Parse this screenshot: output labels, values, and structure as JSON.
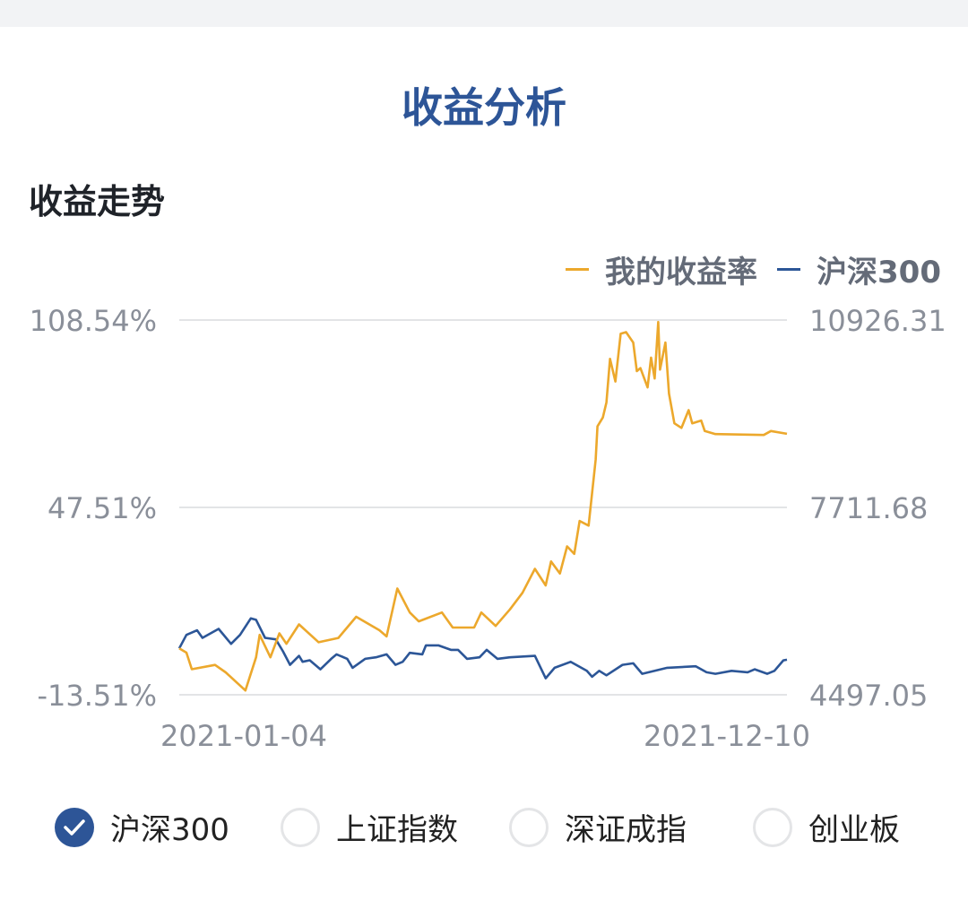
{
  "page_title": "收益分析",
  "section_title": "收益走势",
  "legend": [
    {
      "label": "我的收益率",
      "color": "#eca82c"
    },
    {
      "label": "沪深300",
      "color": "#2c5697"
    }
  ],
  "options": [
    {
      "label": "沪深300",
      "checked": true,
      "icon": "check-icon"
    },
    {
      "label": "上证指数",
      "checked": false
    },
    {
      "label": "深证成指",
      "checked": false
    },
    {
      "label": "创业板",
      "checked": false
    }
  ],
  "chart_data": {
    "type": "line",
    "x_ticks": [
      "2021-01-04",
      "2021-12-10"
    ],
    "x_range": [
      "2021-01-04",
      "2021-12-10"
    ],
    "left_axis": {
      "ticks": [
        "108.54%",
        "47.51%",
        "-13.51%"
      ],
      "range": [
        -13.51,
        108.54
      ]
    },
    "right_axis": {
      "ticks": [
        "10926.31",
        "7711.68",
        "4497.05"
      ],
      "range": [
        4497.05,
        10926.31
      ]
    },
    "grid": true,
    "legend_position": "top-right",
    "series": [
      {
        "name": "我的收益率",
        "axis": "left",
        "color": "#eca82c",
        "points": [
          [
            "2021-01-04",
            1.6
          ],
          [
            "2021-01-08",
            0.2
          ],
          [
            "2021-01-11",
            -5.2
          ],
          [
            "2021-01-24",
            -3.8
          ],
          [
            "2021-01-30",
            -6.2
          ],
          [
            "2021-02-10",
            -12.1
          ],
          [
            "2021-02-16",
            -1.3
          ],
          [
            "2021-02-18",
            6.0
          ],
          [
            "2021-02-24",
            -1.3
          ],
          [
            "2021-03-01",
            6.5
          ],
          [
            "2021-03-05",
            3.1
          ],
          [
            "2021-03-12",
            9.4
          ],
          [
            "2021-03-23",
            3.6
          ],
          [
            "2021-04-03",
            5.0
          ],
          [
            "2021-04-13",
            11.9
          ],
          [
            "2021-04-26",
            7.5
          ],
          [
            "2021-04-30",
            5.5
          ],
          [
            "2021-05-06",
            21.1
          ],
          [
            "2021-05-13",
            13.3
          ],
          [
            "2021-05-18",
            10.4
          ],
          [
            "2021-05-31",
            13.3
          ],
          [
            "2021-06-06",
            8.4
          ],
          [
            "2021-06-18",
            8.4
          ],
          [
            "2021-06-22",
            13.3
          ],
          [
            "2021-06-30",
            8.9
          ],
          [
            "2021-07-08",
            14.3
          ],
          [
            "2021-07-15",
            19.7
          ],
          [
            "2021-07-22",
            27.5
          ],
          [
            "2021-07-28",
            22.1
          ],
          [
            "2021-07-31",
            29.9
          ],
          [
            "2021-08-05",
            26.0
          ],
          [
            "2021-08-09",
            34.8
          ],
          [
            "2021-08-13",
            32.4
          ],
          [
            "2021-08-16",
            43.1
          ],
          [
            "2021-08-21",
            41.6
          ],
          [
            "2021-08-25",
            63.1
          ],
          [
            "2021-08-26",
            73.9
          ],
          [
            "2021-08-29",
            76.8
          ],
          [
            "2021-08-31",
            81.7
          ],
          [
            "2021-09-02",
            95.9
          ],
          [
            "2021-09-05",
            88.5
          ],
          [
            "2021-09-08",
            104.1
          ],
          [
            "2021-09-11",
            104.6
          ],
          [
            "2021-09-15",
            101.2
          ],
          [
            "2021-09-17",
            91.9
          ],
          [
            "2021-09-19",
            92.9
          ],
          [
            "2021-09-23",
            86.6
          ],
          [
            "2021-09-25",
            96.3
          ],
          [
            "2021-09-27",
            89.5
          ],
          [
            "2021-09-29",
            107.9
          ],
          [
            "2021-09-30",
            92.4
          ],
          [
            "2021-10-03",
            101.2
          ],
          [
            "2021-10-05",
            84.6
          ],
          [
            "2021-10-08",
            74.9
          ],
          [
            "2021-10-12",
            73.4
          ],
          [
            "2021-10-16",
            79.2
          ],
          [
            "2021-10-18",
            74.9
          ],
          [
            "2021-10-23",
            75.8
          ],
          [
            "2021-10-25",
            72.4
          ],
          [
            "2021-10-31",
            71.4
          ],
          [
            "2021-11-27",
            71.1
          ],
          [
            "2021-12-01",
            72.4
          ],
          [
            "2021-12-10",
            71.5
          ]
        ]
      },
      {
        "name": "沪深300",
        "axis": "right",
        "color": "#2c5697",
        "points": [
          [
            "2021-01-04",
            5294
          ],
          [
            "2021-01-08",
            5525
          ],
          [
            "2021-01-14",
            5603
          ],
          [
            "2021-01-17",
            5474
          ],
          [
            "2021-01-26",
            5628
          ],
          [
            "2021-02-02",
            5371
          ],
          [
            "2021-02-07",
            5525
          ],
          [
            "2021-02-13",
            5808
          ],
          [
            "2021-02-16",
            5783
          ],
          [
            "2021-02-21",
            5474
          ],
          [
            "2021-02-27",
            5448
          ],
          [
            "2021-03-03",
            5243
          ],
          [
            "2021-03-07",
            5011
          ],
          [
            "2021-03-12",
            5165
          ],
          [
            "2021-03-14",
            5063
          ],
          [
            "2021-03-18",
            5089
          ],
          [
            "2021-03-24",
            4934
          ],
          [
            "2021-03-30",
            5114
          ],
          [
            "2021-04-02",
            5191
          ],
          [
            "2021-04-08",
            5114
          ],
          [
            "2021-04-11",
            4960
          ],
          [
            "2021-04-18",
            5114
          ],
          [
            "2021-04-24",
            5140
          ],
          [
            "2021-04-30",
            5191
          ],
          [
            "2021-05-05",
            5011
          ],
          [
            "2021-05-09",
            5063
          ],
          [
            "2021-05-13",
            5217
          ],
          [
            "2021-05-20",
            5191
          ],
          [
            "2021-05-22",
            5345
          ],
          [
            "2021-05-29",
            5345
          ],
          [
            "2021-06-05",
            5268
          ],
          [
            "2021-06-09",
            5268
          ],
          [
            "2021-06-14",
            5114
          ],
          [
            "2021-06-21",
            5140
          ],
          [
            "2021-06-25",
            5268
          ],
          [
            "2021-07-01",
            5114
          ],
          [
            "2021-07-08",
            5140
          ],
          [
            "2021-07-22",
            5165
          ],
          [
            "2021-07-28",
            4780
          ],
          [
            "2021-08-02",
            4960
          ],
          [
            "2021-08-11",
            5063
          ],
          [
            "2021-08-20",
            4908
          ],
          [
            "2021-08-23",
            4806
          ],
          [
            "2021-08-27",
            4908
          ],
          [
            "2021-08-31",
            4831
          ],
          [
            "2021-09-09",
            5011
          ],
          [
            "2021-09-15",
            5037
          ],
          [
            "2021-09-20",
            4857
          ],
          [
            "2021-10-04",
            4960
          ],
          [
            "2021-10-20",
            4986
          ],
          [
            "2021-10-26",
            4883
          ],
          [
            "2021-10-31",
            4857
          ],
          [
            "2021-11-09",
            4908
          ],
          [
            "2021-11-18",
            4883
          ],
          [
            "2021-11-22",
            4934
          ],
          [
            "2021-11-29",
            4857
          ],
          [
            "2021-12-03",
            4908
          ],
          [
            "2021-12-08",
            5088
          ],
          [
            "2021-12-10",
            5099
          ]
        ]
      }
    ]
  }
}
